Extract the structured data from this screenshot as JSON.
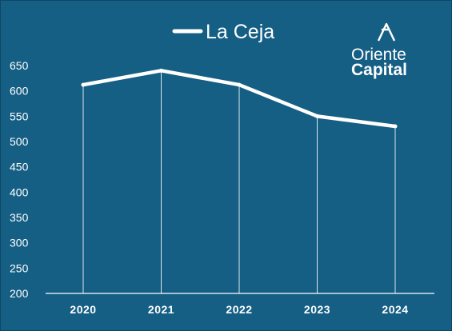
{
  "chart_data": {
    "type": "line",
    "title": "",
    "xlabel": "",
    "ylabel": "",
    "categories": [
      "2020",
      "2021",
      "2022",
      "2023",
      "2024"
    ],
    "series": [
      {
        "name": "La Ceja",
        "values": [
          612,
          640,
          612,
          550,
          530
        ],
        "color": "#ffffff"
      }
    ],
    "ylim": [
      200,
      650
    ],
    "yticks": [
      200,
      250,
      300,
      350,
      400,
      450,
      500,
      550,
      600,
      650
    ],
    "grid": "vertical drop lines at categories",
    "legend": "top-center"
  },
  "logo": {
    "line1": "Oriente",
    "line2": "Capital"
  },
  "colors": {
    "background": "#155e84",
    "line": "#ffffff"
  }
}
